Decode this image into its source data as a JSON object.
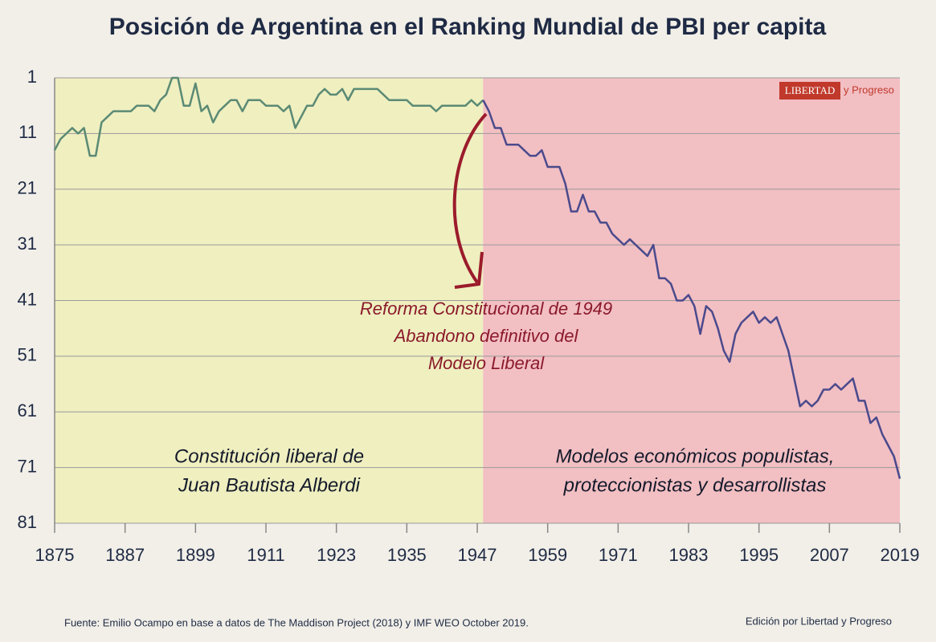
{
  "chart_data": {
    "type": "line",
    "title": "Posición de Argentina en el Ranking Mundial de PBI per capita",
    "xlim": [
      1875,
      2019
    ],
    "xticks": [
      1875,
      1887,
      1899,
      1911,
      1923,
      1935,
      1947,
      1959,
      1971,
      1983,
      1995,
      2007,
      2019
    ],
    "ylim": [
      81,
      1
    ],
    "yticks": [
      1,
      11,
      21,
      31,
      41,
      51,
      61,
      71,
      81
    ],
    "grid": true,
    "regions": [
      {
        "from": 1875,
        "to": 1948,
        "color": "#efefc0"
      },
      {
        "from": 1948,
        "to": 2019,
        "color": "#f2bfc3"
      }
    ],
    "series": [
      {
        "color": "#5b8a74",
        "x": [
          1875,
          1876,
          1877,
          1878,
          1879,
          1880,
          1881,
          1882,
          1883,
          1884,
          1885,
          1886,
          1887,
          1888,
          1889,
          1890,
          1891,
          1892,
          1893,
          1894,
          1895,
          1896,
          1897,
          1898,
          1899,
          1900,
          1901,
          1902,
          1903,
          1904,
          1905,
          1906,
          1907,
          1908,
          1909,
          1910,
          1911,
          1912,
          1913,
          1914,
          1915,
          1916,
          1917,
          1918,
          1919,
          1920,
          1921,
          1922,
          1923,
          1924,
          1925,
          1926,
          1927,
          1928,
          1929,
          1930,
          1931,
          1932,
          1933,
          1934,
          1935,
          1936,
          1937,
          1938,
          1939,
          1940,
          1941,
          1942,
          1943,
          1944,
          1945,
          1946,
          1947,
          1948
        ],
        "values": [
          14,
          12,
          11,
          10,
          11,
          10,
          15,
          15,
          9,
          8,
          7,
          7,
          7,
          7,
          6,
          6,
          6,
          7,
          5,
          4,
          1,
          1,
          6,
          6,
          2,
          7,
          6,
          9,
          7,
          6,
          5,
          5,
          7,
          5,
          5,
          5,
          6,
          6,
          6,
          7,
          6,
          10,
          8,
          6,
          6,
          4,
          3,
          4,
          4,
          3,
          5,
          3,
          3,
          3,
          3,
          3,
          4,
          5,
          5,
          5,
          5,
          6,
          6,
          6,
          6,
          7,
          6,
          6,
          6,
          6,
          6,
          5,
          6,
          5
        ]
      },
      {
        "color": "#4b4a8c",
        "x": [
          1948,
          1949,
          1950,
          1951,
          1952,
          1953,
          1954,
          1955,
          1956,
          1957,
          1958,
          1959,
          1960,
          1961,
          1962,
          1963,
          1964,
          1965,
          1966,
          1967,
          1968,
          1969,
          1970,
          1971,
          1972,
          1973,
          1974,
          1975,
          1976,
          1977,
          1978,
          1979,
          1980,
          1981,
          1982,
          1983,
          1984,
          1985,
          1986,
          1987,
          1988,
          1989,
          1990,
          1991,
          1992,
          1993,
          1994,
          1995,
          1996,
          1997,
          1998,
          1999,
          2000,
          2001,
          2002,
          2003,
          2004,
          2005,
          2006,
          2007,
          2008,
          2009,
          2010,
          2011,
          2012,
          2013,
          2014,
          2015,
          2016,
          2017,
          2018,
          2019
        ],
        "values": [
          5,
          7,
          10,
          10,
          13,
          13,
          13,
          14,
          15,
          15,
          14,
          17,
          17,
          17,
          20,
          25,
          25,
          22,
          25,
          25,
          27,
          27,
          29,
          30,
          31,
          30,
          31,
          32,
          33,
          31,
          37,
          37,
          38,
          41,
          41,
          40,
          42,
          47,
          42,
          43,
          46,
          50,
          52,
          47,
          45,
          44,
          43,
          45,
          44,
          45,
          44,
          47,
          50,
          55,
          60,
          59,
          60,
          59,
          57,
          57,
          56,
          57,
          56,
          55,
          59,
          59,
          63,
          62,
          65,
          67,
          69,
          73
        ]
      }
    ],
    "annotations": [
      "Reforma Constitucional de 1949",
      "Abandono definitivo del",
      "Modelo Liberal"
    ],
    "region_labels": [
      [
        "Constitución liberal de",
        "Juan Bautista Alberdi"
      ],
      [
        "Modelos económicos populistas,",
        "proteccionistas y desarrollistas"
      ]
    ],
    "logo": [
      "LIBERTAD",
      "y Progreso"
    ],
    "source": "Fuente: Emilio Ocampo en base a datos de The Maddison Project (2018) y IMF WEO October 2019.",
    "edition": "Edición por Libertad y Progreso"
  }
}
